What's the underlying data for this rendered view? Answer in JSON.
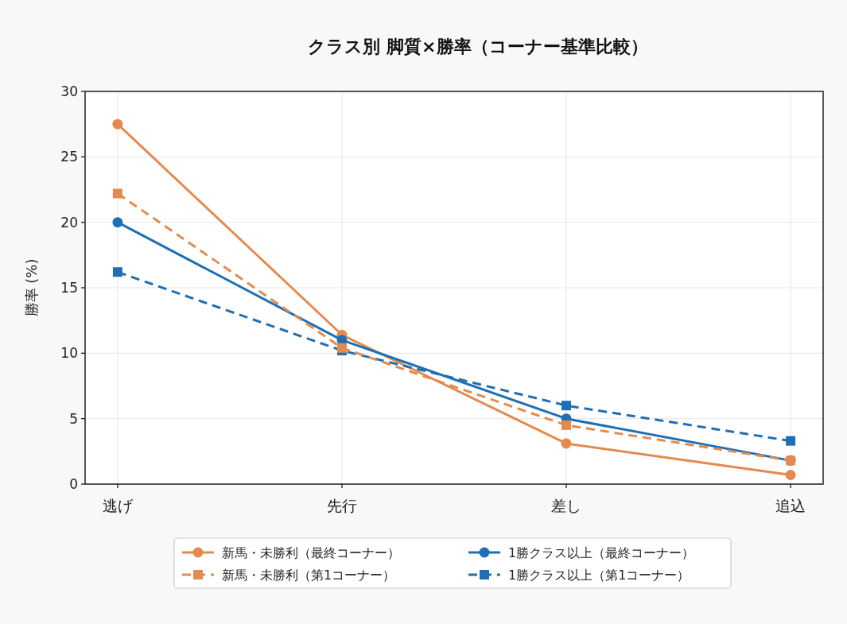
{
  "chart_data": {
    "type": "line",
    "title": "クラス別 脚質×勝率（コーナー基準比較）",
    "ylabel": "勝率 (%)",
    "categories": [
      "逃げ",
      "先行",
      "差し",
      "追込"
    ],
    "series": [
      {
        "name": "新馬・未勝利（最終コーナー）",
        "color": "#e58a4e",
        "marker": "circle",
        "line_style": "solid",
        "values": [
          27.5,
          11.4,
          3.1,
          0.7
        ]
      },
      {
        "name": "新馬・未勝利（第1コーナー）",
        "color": "#e58a4e",
        "marker": "square",
        "line_style": "dashed",
        "values": [
          22.2,
          10.4,
          4.5,
          1.8
        ]
      },
      {
        "name": "1勝クラス以上（最終コーナー）",
        "color": "#1f6fb4",
        "marker": "circle",
        "line_style": "solid",
        "values": [
          20.0,
          11.0,
          5.0,
          1.8
        ]
      },
      {
        "name": "1勝クラス以上（第1コーナー）",
        "color": "#1f6fb4",
        "marker": "square",
        "line_style": "dashed",
        "values": [
          16.2,
          10.2,
          6.0,
          3.3
        ]
      }
    ],
    "ylim": [
      0,
      30
    ],
    "yticks": [
      0,
      5,
      10,
      15,
      20,
      25,
      30
    ],
    "grid": true,
    "legend": "bottom"
  }
}
